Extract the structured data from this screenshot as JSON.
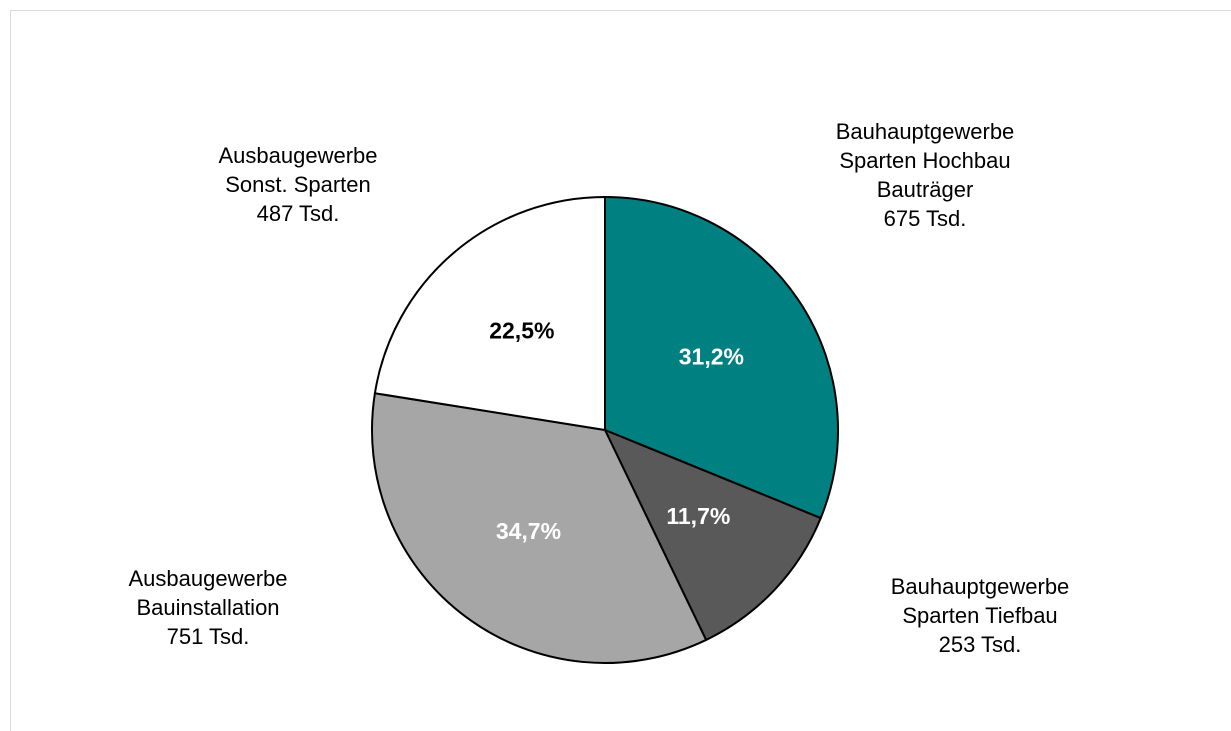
{
  "chart_data": {
    "type": "pie",
    "categories": [
      [
        "Bauhauptgewerbe",
        "Sparten Hochbau",
        "Bauträger"
      ],
      [
        "Bauhauptgewerbe",
        "Sparten Tiefbau"
      ],
      [
        "Ausbaugewerbe",
        "Bauinstallation"
      ],
      [
        "Ausbaugewerbe",
        "Sonst. Sparten"
      ]
    ],
    "amount_labels": [
      "675 Tsd.",
      "253 Tsd.",
      "751 Tsd.",
      "487 Tsd."
    ],
    "values": [
      31.2,
      11.7,
      34.7,
      22.5
    ],
    "value_labels": [
      "31,2%",
      "11,7%",
      "34,7%",
      "22,5%"
    ],
    "colors": [
      "#008080",
      "#595959",
      "#a6a6a6",
      "#ffffff"
    ],
    "label_colors": [
      "#ffffff",
      "#ffffff",
      "#ffffff",
      "#000000"
    ],
    "start_angle": 0,
    "direction": "clockwise"
  }
}
